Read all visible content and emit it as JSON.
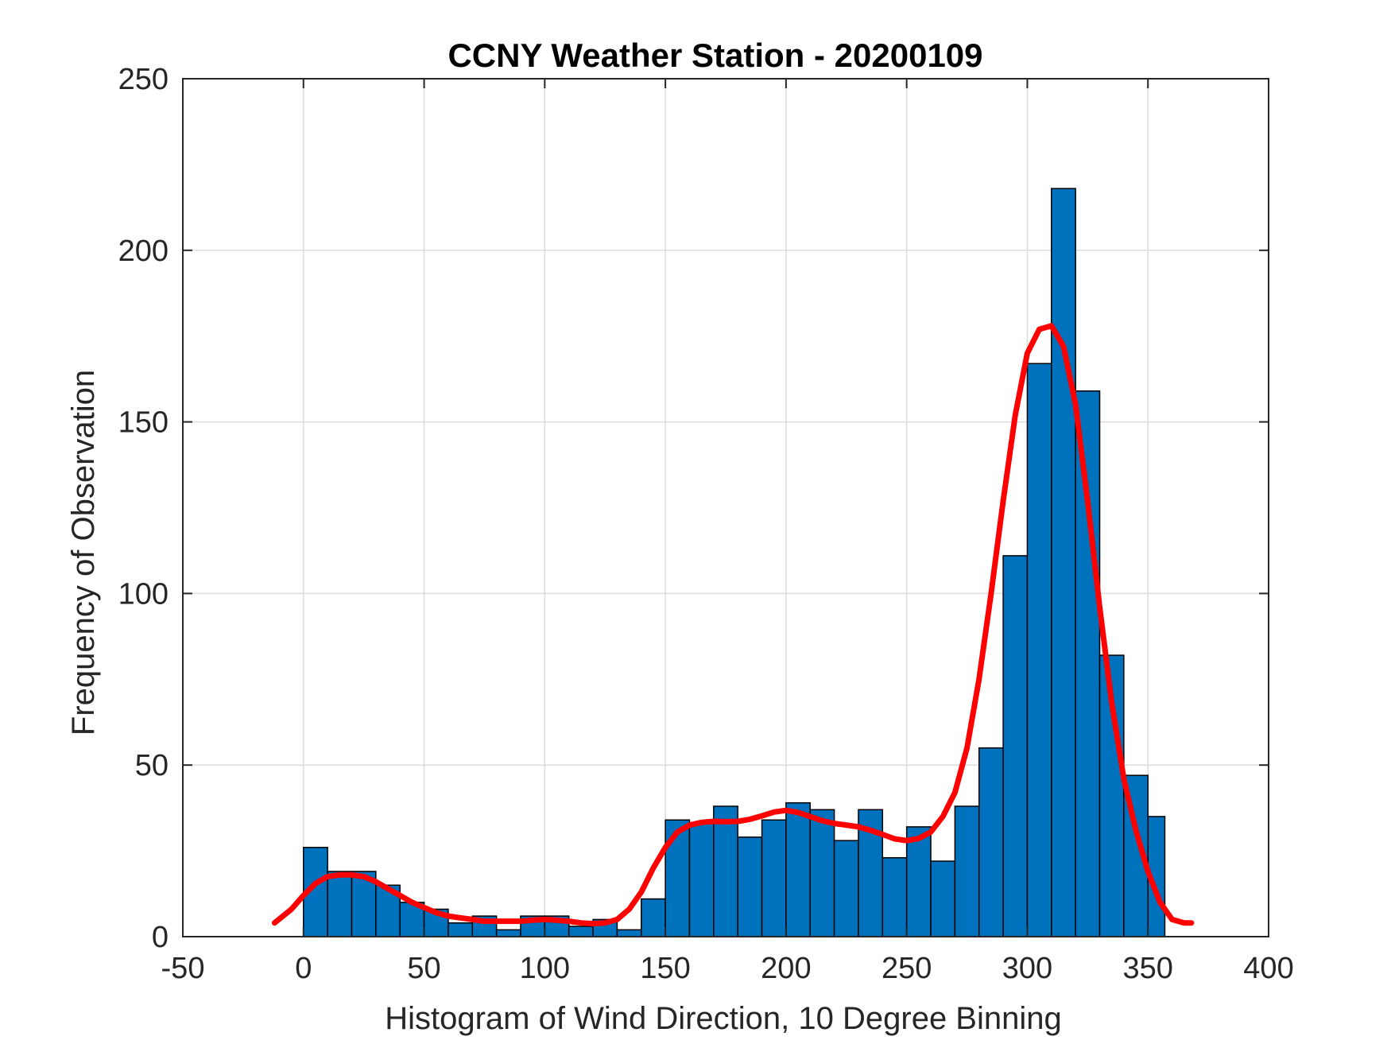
{
  "chart_data": {
    "type": "bar",
    "title": "CCNY Weather Station - 20200109",
    "xlabel": "Histogram of Wind Direction, 10 Degree Binning",
    "ylabel": "Frequency of Observation",
    "xlim": [
      -50,
      400
    ],
    "ylim": [
      0,
      250
    ],
    "xticks": [
      -50,
      0,
      50,
      100,
      150,
      200,
      250,
      300,
      350,
      400
    ],
    "yticks": [
      0,
      50,
      100,
      150,
      200,
      250
    ],
    "grid": true,
    "bin_width": 10,
    "bins": [
      {
        "x0": 0,
        "x1": 10,
        "value": 26
      },
      {
        "x0": 10,
        "x1": 20,
        "value": 19
      },
      {
        "x0": 20,
        "x1": 30,
        "value": 19
      },
      {
        "x0": 30,
        "x1": 40,
        "value": 15
      },
      {
        "x0": 40,
        "x1": 50,
        "value": 10
      },
      {
        "x0": 50,
        "x1": 60,
        "value": 8
      },
      {
        "x0": 60,
        "x1": 70,
        "value": 4
      },
      {
        "x0": 70,
        "x1": 80,
        "value": 6
      },
      {
        "x0": 80,
        "x1": 90,
        "value": 2
      },
      {
        "x0": 90,
        "x1": 100,
        "value": 6
      },
      {
        "x0": 100,
        "x1": 110,
        "value": 6
      },
      {
        "x0": 110,
        "x1": 120,
        "value": 3
      },
      {
        "x0": 120,
        "x1": 130,
        "value": 5
      },
      {
        "x0": 130,
        "x1": 140,
        "value": 2
      },
      {
        "x0": 140,
        "x1": 150,
        "value": 11
      },
      {
        "x0": 150,
        "x1": 160,
        "value": 34
      },
      {
        "x0": 160,
        "x1": 170,
        "value": 33
      },
      {
        "x0": 170,
        "x1": 180,
        "value": 38
      },
      {
        "x0": 180,
        "x1": 190,
        "value": 29
      },
      {
        "x0": 190,
        "x1": 200,
        "value": 34
      },
      {
        "x0": 200,
        "x1": 210,
        "value": 39
      },
      {
        "x0": 210,
        "x1": 220,
        "value": 37
      },
      {
        "x0": 220,
        "x1": 230,
        "value": 28
      },
      {
        "x0": 230,
        "x1": 240,
        "value": 37
      },
      {
        "x0": 240,
        "x1": 250,
        "value": 23
      },
      {
        "x0": 250,
        "x1": 260,
        "value": 32
      },
      {
        "x0": 260,
        "x1": 270,
        "value": 22
      },
      {
        "x0": 270,
        "x1": 280,
        "value": 38
      },
      {
        "x0": 280,
        "x1": 290,
        "value": 55
      },
      {
        "x0": 290,
        "x1": 300,
        "value": 111
      },
      {
        "x0": 300,
        "x1": 310,
        "value": 167
      },
      {
        "x0": 310,
        "x1": 320,
        "value": 218
      },
      {
        "x0": 320,
        "x1": 330,
        "value": 159
      },
      {
        "x0": 330,
        "x1": 340,
        "value": 82
      },
      {
        "x0": 340,
        "x1": 350,
        "value": 47
      },
      {
        "x0": 350,
        "x1": 357,
        "value": 35
      }
    ],
    "curve": {
      "type": "line",
      "x": [
        -12,
        -5,
        0,
        5,
        10,
        15,
        20,
        25,
        30,
        35,
        40,
        45,
        50,
        55,
        60,
        65,
        70,
        75,
        80,
        85,
        90,
        95,
        100,
        105,
        110,
        115,
        120,
        125,
        130,
        135,
        140,
        145,
        150,
        155,
        160,
        165,
        170,
        175,
        180,
        185,
        190,
        195,
        200,
        205,
        210,
        215,
        220,
        225,
        230,
        235,
        240,
        245,
        250,
        255,
        260,
        265,
        270,
        275,
        280,
        285,
        290,
        295,
        300,
        305,
        310,
        315,
        320,
        325,
        330,
        335,
        340,
        345,
        350,
        355,
        360,
        365,
        368
      ],
      "y": [
        4,
        8,
        12,
        15.5,
        17.5,
        18,
        18,
        17.5,
        16,
        14,
        12,
        10,
        8.5,
        7,
        6,
        5.5,
        5,
        4.5,
        4.5,
        4.5,
        4.5,
        4.8,
        5,
        4.8,
        4.5,
        4,
        3.8,
        4,
        5,
        8,
        13,
        20,
        26,
        30.5,
        32.5,
        33.3,
        33.6,
        33.5,
        33.6,
        34.2,
        35.2,
        36.3,
        36.8,
        36.2,
        35,
        33.8,
        33,
        32.5,
        32,
        31,
        29.8,
        28.5,
        28,
        28.6,
        30.5,
        35,
        42,
        55,
        75,
        100,
        127,
        152,
        170,
        177,
        178,
        172,
        155,
        127,
        96,
        68,
        46,
        31,
        19,
        10,
        5,
        4,
        4
      ],
      "color": "#ff0000"
    },
    "colors": {
      "bar_fill": "#0072bd",
      "bar_edge": "#000000",
      "curve": "#ff0000",
      "axes": "#262626",
      "grid": "#dcdcdc"
    }
  }
}
